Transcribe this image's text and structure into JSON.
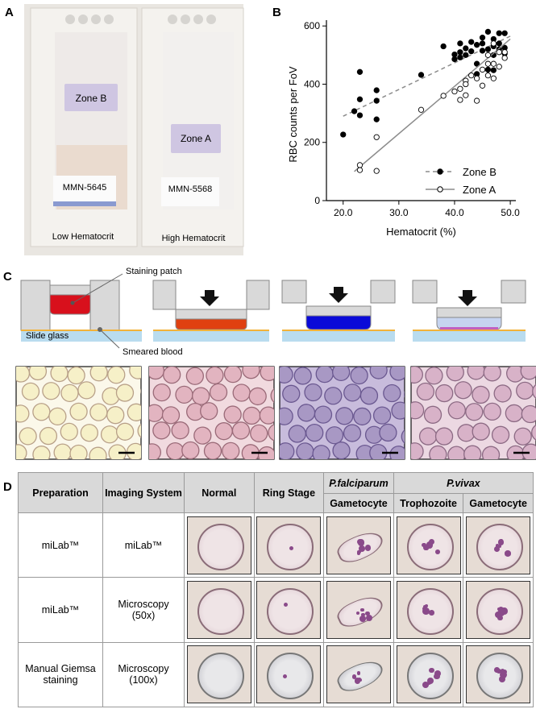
{
  "panel_a": {
    "label": "A",
    "slides": [
      {
        "zone": "Zone B",
        "sample": "MMN-5645",
        "caption": "Low Hematocrit"
      },
      {
        "zone": "Zone A",
        "sample": "MMN-5568",
        "caption": "High Hematocrit"
      }
    ]
  },
  "chart_data": {
    "type": "scatter",
    "panel": "B",
    "x_label": "Hematocrit (%)",
    "y_label": "RBC counts per FoV",
    "xlim": [
      17,
      51
    ],
    "ylim": [
      0,
      620
    ],
    "xticks": [
      {
        "value": 20,
        "label": "20.0"
      },
      {
        "value": 30,
        "label": "30.0"
      },
      {
        "value": 40,
        "label": "40.0"
      },
      {
        "value": 50,
        "label": "50.0"
      }
    ],
    "yticks": [
      0,
      200,
      400,
      600
    ],
    "legend": "lower right",
    "series": [
      {
        "name": "Zone B",
        "color": "#000000",
        "marker": "filled",
        "line_style": "dashed",
        "line_color": "#8c8c8c",
        "x": [
          20,
          22,
          23,
          23,
          23,
          26,
          26,
          26,
          34,
          38,
          40,
          40,
          41,
          41,
          41,
          42,
          42,
          43,
          43,
          44,
          44,
          44,
          45,
          45,
          45,
          46,
          46,
          46,
          47,
          47,
          47,
          47,
          48,
          48,
          48,
          49,
          49,
          49
        ],
        "values": [
          227,
          307,
          442,
          348,
          293,
          379,
          343,
          279,
          432,
          530,
          486,
          502,
          510,
          540,
          492,
          523,
          500,
          545,
          513,
          535,
          470,
          435,
          540,
          560,
          515,
          580,
          520,
          450,
          555,
          530,
          500,
          448,
          575,
          520,
          540,
          575,
          505,
          525
        ],
        "fit": {
          "x": [
            20,
            50
          ],
          "values": [
            290,
            565
          ]
        }
      },
      {
        "name": "Zone A",
        "color": "#000000",
        "marker": "open",
        "line_style": "solid",
        "line_color": "#8c8c8c",
        "x": [
          23,
          23,
          26,
          26,
          34,
          38,
          40,
          41,
          41,
          42,
          42,
          42,
          43,
          44,
          44,
          45,
          45,
          46,
          46,
          46,
          47,
          47,
          47,
          48,
          48,
          49,
          49
        ],
        "values": [
          122,
          105,
          102,
          218,
          312,
          360,
          375,
          384,
          346,
          412,
          362,
          400,
          430,
          343,
          420,
          395,
          450,
          470,
          430,
          500,
          420,
          470,
          540,
          460,
          510,
          490,
          510
        ],
        "fit": {
          "x": [
            22,
            50
          ],
          "values": [
            100,
            555
          ]
        }
      }
    ]
  },
  "panel_c": {
    "label": "C",
    "staining_patch": "Staining patch",
    "slide_glass": "Slide glass",
    "smeared_blood": "Smeared blood"
  },
  "panel_d": {
    "label": "D",
    "table": {
      "header": [
        "Preparation",
        "Imaging System",
        "Normal",
        "Ring Stage",
        "P.falciparum",
        "P.vivax"
      ],
      "subheader": [
        "Gametocyte",
        "Trophozoite",
        "Gametocyte"
      ],
      "rows": [
        [
          "miLab™",
          "miLab™"
        ],
        [
          "miLab™",
          "Microscopy (50x)"
        ],
        [
          "Manual Giemsa staining",
          "Microscopy (100x)"
        ]
      ]
    }
  }
}
